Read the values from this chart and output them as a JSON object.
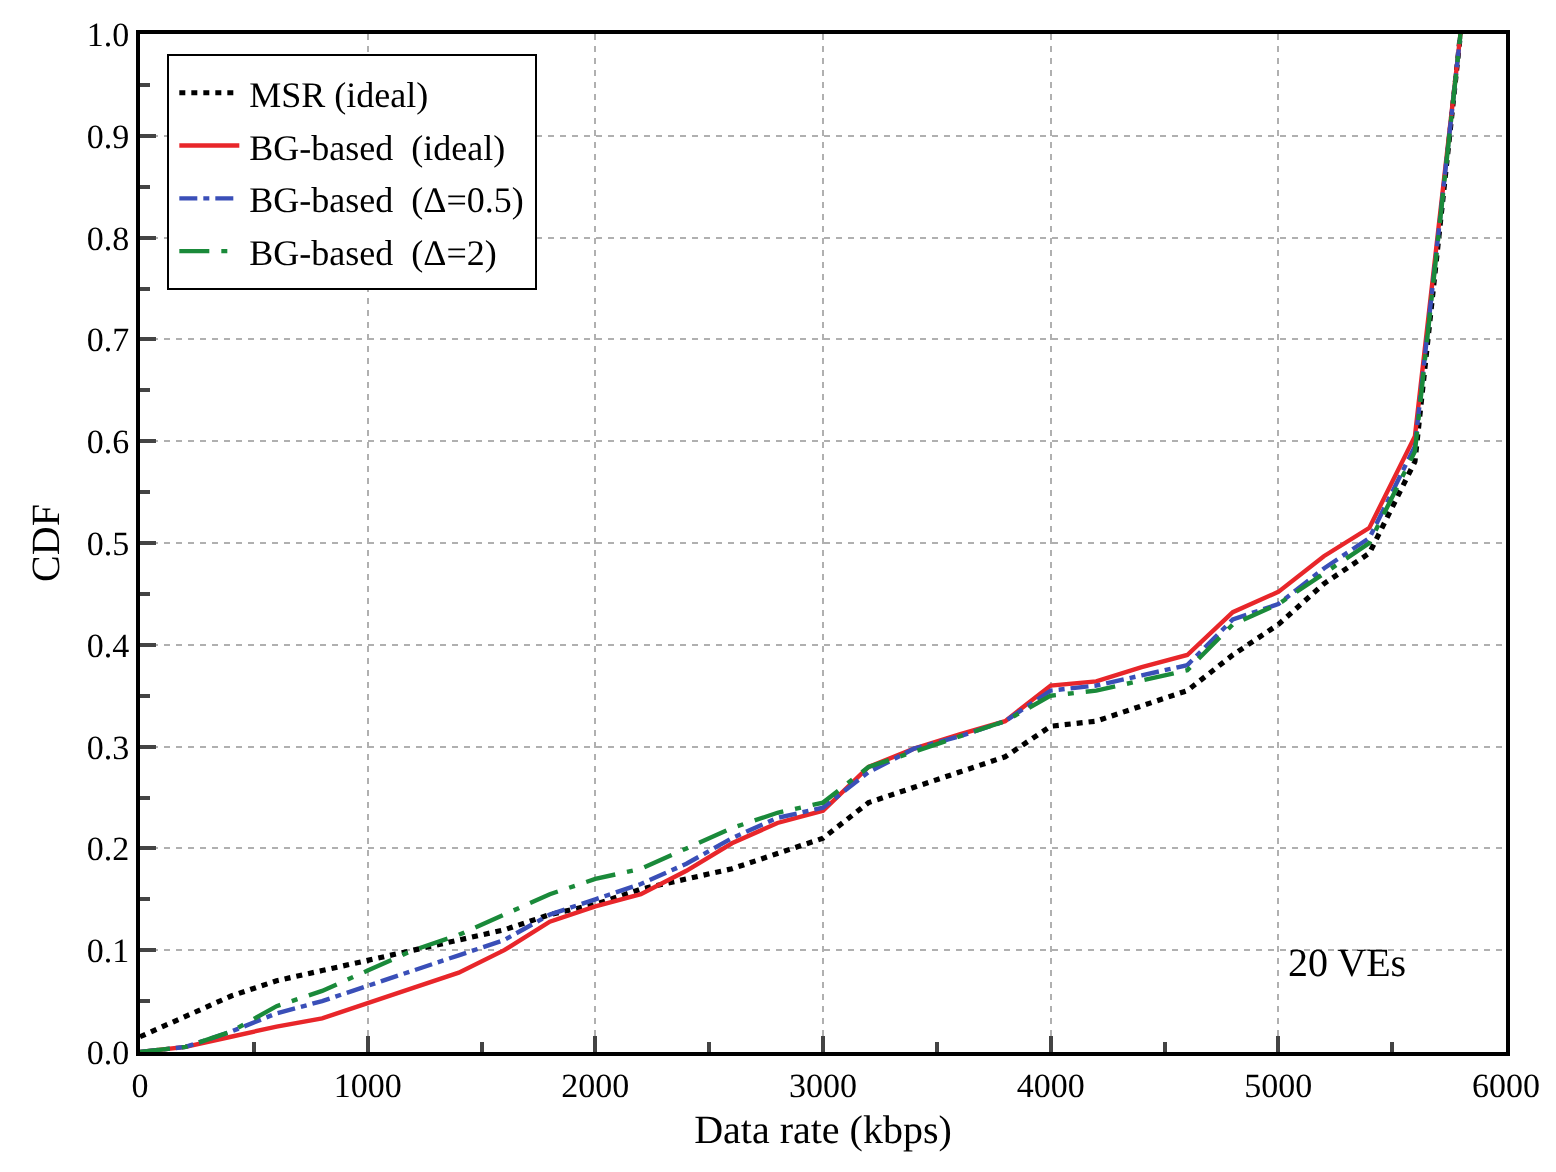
{
  "chart_data": {
    "type": "line",
    "xlabel": "Data rate (kbps)",
    "ylabel": "CDF",
    "x": [
      0,
      200,
      400,
      600,
      800,
      1000,
      1200,
      1400,
      1600,
      1800,
      2000,
      2200,
      2400,
      2600,
      2800,
      3000,
      3200,
      3400,
      3600,
      3800,
      4000,
      4200,
      4400,
      4600,
      4800,
      5000,
      5200,
      5400,
      5600,
      5800
    ],
    "series": [
      {
        "name": "MSR (ideal)",
        "color": "#000000",
        "line_style": "dotted",
        "values": [
          0.015,
          0.035,
          0.055,
          0.07,
          0.08,
          0.09,
          0.1,
          0.11,
          0.12,
          0.135,
          0.145,
          0.16,
          0.17,
          0.18,
          0.195,
          0.21,
          0.245,
          0.26,
          0.275,
          0.29,
          0.32,
          0.325,
          0.34,
          0.355,
          0.39,
          0.42,
          0.46,
          0.49,
          0.58,
          1.0
        ]
      },
      {
        "name": "BG-based  (ideal)",
        "color": "#e8262a",
        "line_style": "solid",
        "values": [
          0,
          0.005,
          0.015,
          0.025,
          0.033,
          0.048,
          0.063,
          0.078,
          0.1,
          0.128,
          0.143,
          0.155,
          0.178,
          0.205,
          0.225,
          0.237,
          0.28,
          0.298,
          0.312,
          0.325,
          0.36,
          0.364,
          0.378,
          0.39,
          0.432,
          0.452,
          0.487,
          0.515,
          0.605,
          1.0
        ]
      },
      {
        "name": "BG-based  (Δ=0.5)",
        "color": "#3a4fb8",
        "line_style": "dashdot",
        "values": [
          0,
          0.005,
          0.02,
          0.038,
          0.05,
          0.065,
          0.08,
          0.095,
          0.11,
          0.135,
          0.15,
          0.165,
          0.185,
          0.21,
          0.23,
          0.24,
          0.275,
          0.298,
          0.31,
          0.325,
          0.355,
          0.36,
          0.37,
          0.38,
          0.425,
          0.44,
          0.475,
          0.505,
          0.595,
          1.0
        ]
      },
      {
        "name": "BG-based  (Δ=2)",
        "color": "#1a8a3a",
        "line_style": "longdashdot",
        "values": [
          0,
          0.005,
          0.02,
          0.045,
          0.06,
          0.08,
          0.1,
          0.115,
          0.135,
          0.155,
          0.17,
          0.18,
          0.2,
          0.22,
          0.235,
          0.245,
          0.28,
          0.295,
          0.31,
          0.325,
          0.35,
          0.355,
          0.365,
          0.375,
          0.42,
          0.44,
          0.47,
          0.5,
          0.59,
          1.0
        ]
      }
    ],
    "xlim": [
      0,
      6000
    ],
    "xticks": [
      0,
      1000,
      2000,
      3000,
      4000,
      5000,
      6000
    ],
    "ylim": [
      0,
      1.0
    ],
    "yticks": [
      {
        "value": 0,
        "label": "0.0"
      },
      {
        "value": 0.1,
        "label": "0.1"
      },
      {
        "value": 0.2,
        "label": "0.2"
      },
      {
        "value": 0.3,
        "label": "0.3"
      },
      {
        "value": 0.4,
        "label": "0.4"
      },
      {
        "value": 0.5,
        "label": "0.5"
      },
      {
        "value": 0.6,
        "label": "0.6"
      },
      {
        "value": 0.7,
        "label": "0.7"
      },
      {
        "value": 0.8,
        "label": "0.8"
      },
      {
        "value": 0.9,
        "label": "0.9"
      },
      {
        "value": 1.0,
        "label": "1.0"
      }
    ],
    "grid": true,
    "legend": "top left",
    "marker": "none",
    "annotations": [
      "20 VEs"
    ]
  }
}
